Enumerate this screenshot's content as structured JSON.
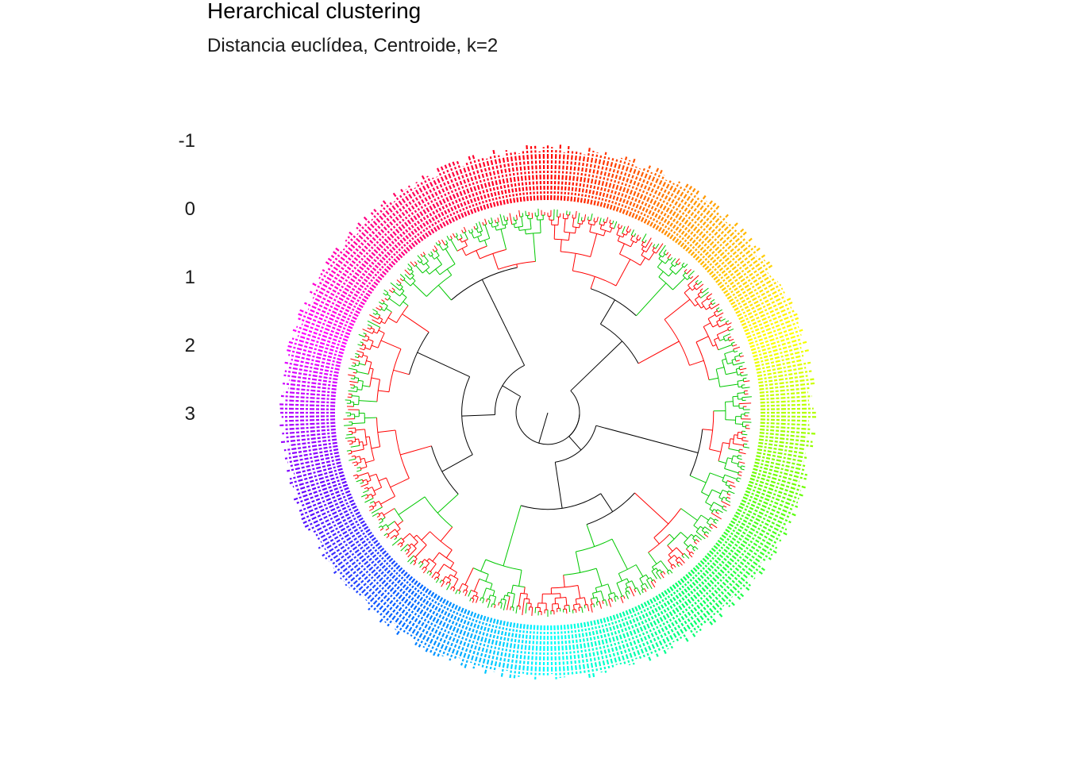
{
  "chart_data": {
    "type": "dendrogram-circular",
    "title": "Herarchical clustering",
    "subtitle": "Distancia euclídea, Centroide, k=2",
    "y_tick_labels": [
      "-1",
      "0",
      "1",
      "2",
      "3"
    ],
    "y_ticks": [
      -1,
      0,
      1,
      2,
      3
    ],
    "k": 2,
    "cluster_colors": [
      "#ff0000",
      "#00c800"
    ],
    "label_gradient": [
      "#ff0000",
      "#ff9900",
      "#ffff00",
      "#66ff00",
      "#00ff66",
      "#00ffff",
      "#0066ff",
      "#6600ff",
      "#ff00ff",
      "#ff0066"
    ]
  }
}
